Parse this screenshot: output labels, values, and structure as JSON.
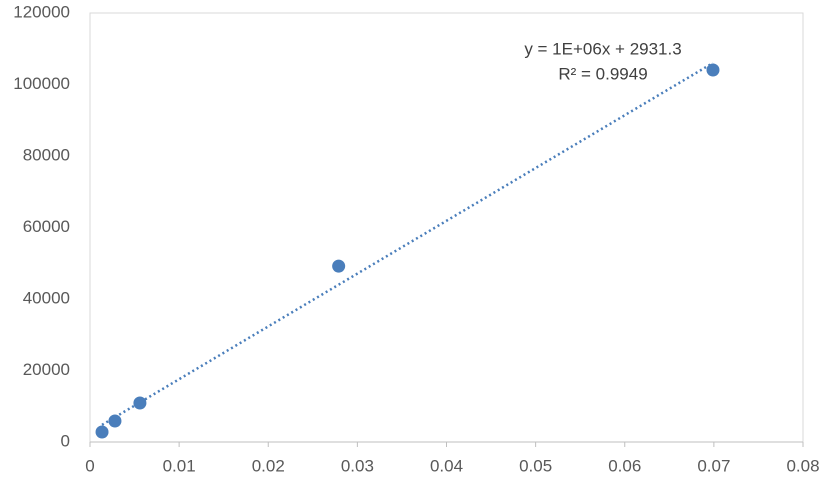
{
  "chart_data": {
    "type": "scatter",
    "x": [
      0.00135,
      0.0028,
      0.0056,
      0.0279,
      0.0699
    ],
    "values": [
      2800,
      5870,
      10900,
      49200,
      104050
    ],
    "color": "#4a7ebb",
    "trendline": true,
    "annotations": [
      "y = 1E+06x + 2931.3",
      "R² = 0.9949"
    ],
    "xlim": [
      0,
      0.08
    ],
    "xticks": [
      0,
      0.01,
      0.02,
      0.03,
      0.04,
      0.05,
      0.06,
      0.07,
      0.08
    ],
    "ylim": [
      0,
      120000
    ],
    "yticks": [
      0,
      20000,
      40000,
      60000,
      80000,
      100000,
      120000
    ],
    "grid": false
  }
}
